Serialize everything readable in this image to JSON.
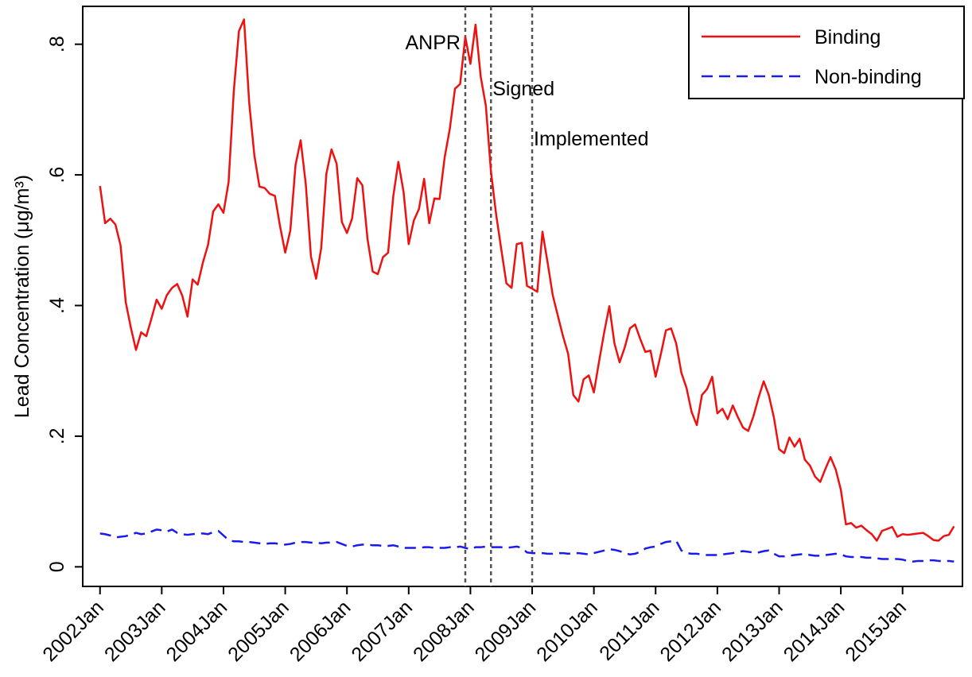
{
  "chart_data": {
    "type": "line",
    "y_label": "Lead Concentration (μg/m³)",
    "x": [
      2002,
      2002.083,
      2002.167,
      2002.25,
      2002.333,
      2002.417,
      2002.5,
      2002.583,
      2002.667,
      2002.75,
      2002.833,
      2002.917,
      2003,
      2003.083,
      2003.167,
      2003.25,
      2003.333,
      2003.417,
      2003.5,
      2003.583,
      2003.667,
      2003.75,
      2003.833,
      2003.917,
      2004,
      2004.083,
      2004.167,
      2004.25,
      2004.333,
      2004.417,
      2004.5,
      2004.583,
      2004.667,
      2004.75,
      2004.833,
      2004.917,
      2005,
      2005.083,
      2005.167,
      2005.25,
      2005.333,
      2005.417,
      2005.5,
      2005.583,
      2005.667,
      2005.75,
      2005.833,
      2005.917,
      2006,
      2006.083,
      2006.167,
      2006.25,
      2006.333,
      2006.417,
      2006.5,
      2006.583,
      2006.667,
      2006.75,
      2006.833,
      2006.917,
      2007,
      2007.083,
      2007.167,
      2007.25,
      2007.333,
      2007.417,
      2007.5,
      2007.583,
      2007.667,
      2007.75,
      2007.833,
      2007.917,
      2008,
      2008.083,
      2008.167,
      2008.25,
      2008.333,
      2008.417,
      2008.5,
      2008.583,
      2008.667,
      2008.75,
      2008.833,
      2008.917,
      2009,
      2009.083,
      2009.167,
      2009.25,
      2009.333,
      2009.417,
      2009.5,
      2009.583,
      2009.667,
      2009.75,
      2009.833,
      2009.917,
      2010,
      2010.083,
      2010.167,
      2010.25,
      2010.333,
      2010.417,
      2010.5,
      2010.583,
      2010.667,
      2010.75,
      2010.833,
      2010.917,
      2011,
      2011.083,
      2011.167,
      2011.25,
      2011.333,
      2011.417,
      2011.5,
      2011.583,
      2011.667,
      2011.75,
      2011.833,
      2011.917,
      2012,
      2012.083,
      2012.167,
      2012.25,
      2012.333,
      2012.417,
      2012.5,
      2012.583,
      2012.667,
      2012.75,
      2012.833,
      2012.917,
      2013,
      2013.083,
      2013.167,
      2013.25,
      2013.333,
      2013.417,
      2013.5,
      2013.583,
      2013.667,
      2013.75,
      2013.833,
      2013.917,
      2014,
      2014.083,
      2014.167,
      2014.25,
      2014.333,
      2014.417,
      2014.5,
      2014.583,
      2014.667,
      2014.75,
      2014.833,
      2014.917,
      2015,
      2015.083,
      2015.167,
      2015.25,
      2015.333,
      2015.417,
      2015.5,
      2015.583,
      2015.667,
      2015.75,
      2015.833
    ],
    "series": [
      {
        "name": "Binding",
        "color": "#ee1111",
        "dash": "solid",
        "values": [
          0.583,
          0.526,
          0.533,
          0.524,
          0.492,
          0.405,
          0.366,
          0.332,
          0.359,
          0.353,
          0.38,
          0.409,
          0.395,
          0.416,
          0.427,
          0.433,
          0.415,
          0.383,
          0.44,
          0.432,
          0.466,
          0.493,
          0.544,
          0.555,
          0.542,
          0.589,
          0.728,
          0.82,
          0.838,
          0.71,
          0.63,
          0.582,
          0.58,
          0.571,
          0.568,
          0.521,
          0.481,
          0.515,
          0.615,
          0.653,
          0.586,
          0.475,
          0.441,
          0.488,
          0.602,
          0.639,
          0.617,
          0.528,
          0.511,
          0.533,
          0.595,
          0.584,
          0.502,
          0.452,
          0.448,
          0.474,
          0.481,
          0.567,
          0.62,
          0.574,
          0.494,
          0.53,
          0.548,
          0.594,
          0.526,
          0.564,
          0.563,
          0.627,
          0.671,
          0.732,
          0.739,
          0.811,
          0.77,
          0.83,
          0.75,
          0.706,
          0.605,
          0.539,
          0.486,
          0.434,
          0.427,
          0.494,
          0.496,
          0.43,
          0.426,
          0.421,
          0.513,
          0.466,
          0.416,
          0.384,
          0.353,
          0.326,
          0.263,
          0.253,
          0.287,
          0.293,
          0.267,
          0.314,
          0.359,
          0.399,
          0.342,
          0.313,
          0.336,
          0.365,
          0.371,
          0.349,
          0.329,
          0.331,
          0.291,
          0.325,
          0.362,
          0.365,
          0.342,
          0.297,
          0.274,
          0.237,
          0.217,
          0.263,
          0.272,
          0.291,
          0.235,
          0.242,
          0.226,
          0.247,
          0.229,
          0.213,
          0.208,
          0.23,
          0.259,
          0.284,
          0.263,
          0.228,
          0.18,
          0.174,
          0.198,
          0.184,
          0.196,
          0.164,
          0.155,
          0.138,
          0.13,
          0.15,
          0.168,
          0.149,
          0.118,
          0.065,
          0.067,
          0.06,
          0.063,
          0.056,
          0.05,
          0.04,
          0.055,
          0.058,
          0.061,
          0.046,
          0.05,
          0.049,
          0.05,
          0.051,
          0.052,
          0.047,
          0.041,
          0.04,
          0.047,
          0.049,
          0.062
        ]
      },
      {
        "name": "Non-binding",
        "color": "#1a1aee",
        "dash": "dashed",
        "values": [
          0.051,
          0.05,
          0.048,
          0.045,
          0.046,
          0.047,
          0.049,
          0.052,
          0.05,
          0.051,
          0.054,
          0.057,
          0.056,
          0.054,
          0.057,
          0.052,
          0.05,
          0.049,
          0.05,
          0.051,
          0.051,
          0.05,
          0.053,
          0.055,
          0.048,
          0.041,
          0.039,
          0.039,
          0.038,
          0.038,
          0.037,
          0.036,
          0.035,
          0.036,
          0.036,
          0.035,
          0.034,
          0.035,
          0.037,
          0.038,
          0.038,
          0.037,
          0.037,
          0.036,
          0.037,
          0.037,
          0.038,
          0.035,
          0.032,
          0.031,
          0.033,
          0.034,
          0.034,
          0.033,
          0.033,
          0.032,
          0.032,
          0.033,
          0.031,
          0.029,
          0.029,
          0.029,
          0.029,
          0.03,
          0.03,
          0.029,
          0.029,
          0.029,
          0.03,
          0.03,
          0.031,
          0.029,
          0.027,
          0.03,
          0.03,
          0.031,
          0.03,
          0.03,
          0.03,
          0.029,
          0.03,
          0.031,
          0.029,
          0.022,
          0.021,
          0.021,
          0.021,
          0.02,
          0.02,
          0.021,
          0.021,
          0.02,
          0.021,
          0.021,
          0.02,
          0.019,
          0.021,
          0.023,
          0.025,
          0.027,
          0.026,
          0.024,
          0.021,
          0.019,
          0.02,
          0.023,
          0.028,
          0.03,
          0.031,
          0.035,
          0.038,
          0.039,
          0.04,
          0.025,
          0.021,
          0.02,
          0.02,
          0.019,
          0.018,
          0.018,
          0.018,
          0.019,
          0.02,
          0.021,
          0.023,
          0.024,
          0.023,
          0.022,
          0.022,
          0.024,
          0.025,
          0.02,
          0.016,
          0.016,
          0.017,
          0.018,
          0.019,
          0.02,
          0.018,
          0.017,
          0.017,
          0.018,
          0.019,
          0.02,
          0.019,
          0.016,
          0.015,
          0.015,
          0.015,
          0.014,
          0.014,
          0.013,
          0.012,
          0.012,
          0.012,
          0.012,
          0.011,
          0.009,
          0.008,
          0.009,
          0.009,
          0.01,
          0.01,
          0.009,
          0.009,
          0.009,
          0.008
        ]
      }
    ],
    "xlim": [
      2001.72,
      2015.97
    ],
    "xticks": [
      {
        "value": 2002,
        "label": "2002Jan"
      },
      {
        "value": 2003,
        "label": "2003Jan"
      },
      {
        "value": 2004,
        "label": "2004Jan"
      },
      {
        "value": 2005,
        "label": "2005Jan"
      },
      {
        "value": 2006,
        "label": "2006Jan"
      },
      {
        "value": 2007,
        "label": "2007Jan"
      },
      {
        "value": 2008,
        "label": "2008Jan"
      },
      {
        "value": 2009,
        "label": "2009Jan"
      },
      {
        "value": 2010,
        "label": "2010Jan"
      },
      {
        "value": 2011,
        "label": "2011Jan"
      },
      {
        "value": 2012,
        "label": "2012Jan"
      },
      {
        "value": 2013,
        "label": "2013Jan"
      },
      {
        "value": 2014,
        "label": "2014Jan"
      },
      {
        "value": 2015,
        "label": "2015Jan"
      }
    ],
    "ylim": [
      -0.03,
      0.858
    ],
    "yticks": [
      0,
      {
        "value": 0.2,
        "label": ".2"
      },
      {
        "value": 0.4,
        "label": ".4"
      },
      {
        "value": 0.6,
        "label": ".6"
      },
      {
        "value": 0.8,
        "label": ".8"
      }
    ],
    "events": [
      {
        "label": "ANPR",
        "x": 2007.917
      },
      {
        "label": "Signed",
        "x": 2008.333
      },
      {
        "label": "Implemented",
        "x": 2009
      }
    ],
    "grid": false,
    "legend": "top-right"
  }
}
